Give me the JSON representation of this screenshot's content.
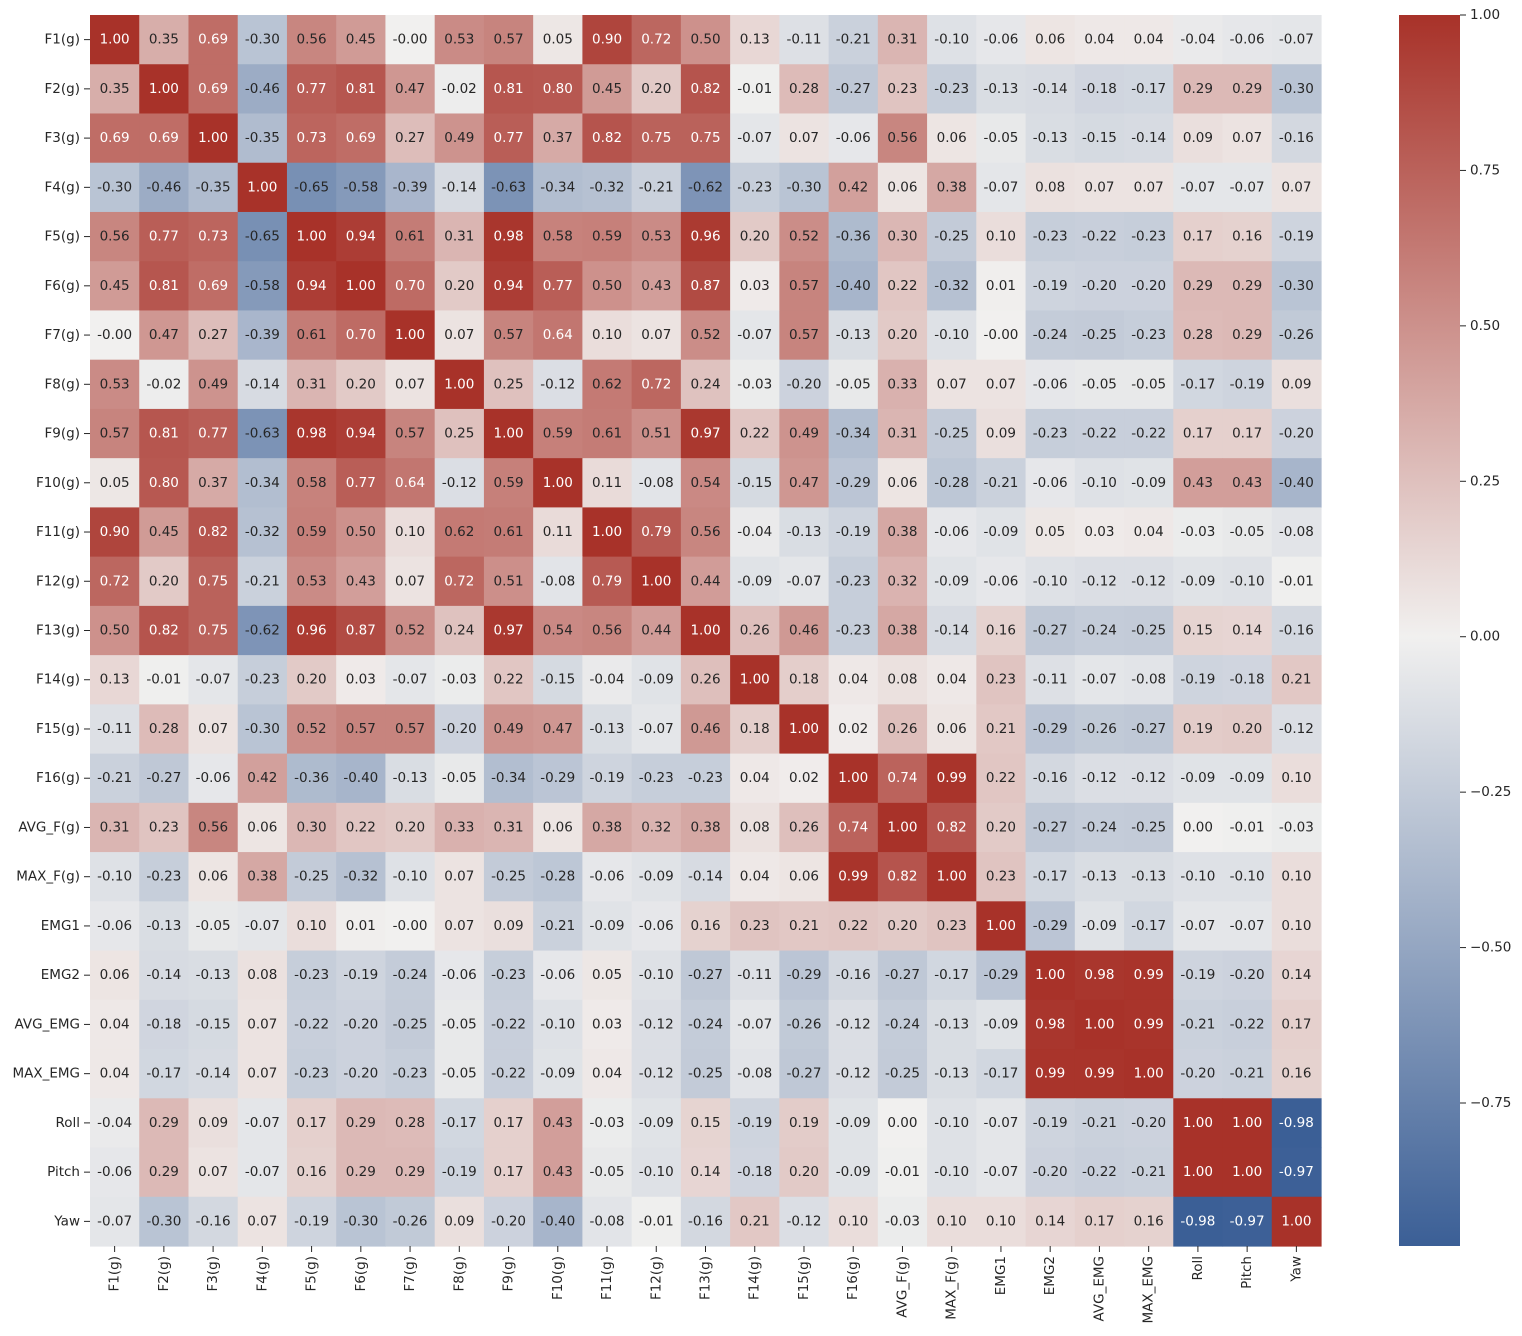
{
  "chart_data": {
    "type": "heatmap",
    "title": "",
    "xlabel": "",
    "ylabel": "",
    "labels": [
      "F1(g)",
      "F2(g)",
      "F3(g)",
      "F4(g)",
      "F5(g)",
      "F6(g)",
      "F7(g)",
      "F8(g)",
      "F9(g)",
      "F10(g)",
      "F11(g)",
      "F12(g)",
      "F13(g)",
      "F14(g)",
      "F15(g)",
      "F16(g)",
      "AVG_F(g)",
      "MAX_F(g)",
      "EMG1",
      "EMG2",
      "AVG_EMG",
      "MAX_EMG",
      "Roll",
      "Pitch",
      "Yaw"
    ],
    "matrix": [
      [
        "1.00",
        "0.35",
        "0.69",
        "-0.30",
        "0.56",
        "0.45",
        "-0.00",
        "0.53",
        "0.57",
        "0.05",
        "0.90",
        "0.72",
        "0.50",
        "0.13",
        "-0.11",
        "-0.21",
        "0.31",
        "-0.10",
        "-0.06",
        "0.06",
        "0.04",
        "0.04",
        "-0.04",
        "-0.06",
        "-0.07"
      ],
      [
        "0.35",
        "1.00",
        "0.69",
        "-0.46",
        "0.77",
        "0.81",
        "0.47",
        "-0.02",
        "0.81",
        "0.80",
        "0.45",
        "0.20",
        "0.82",
        "-0.01",
        "0.28",
        "-0.27",
        "0.23",
        "-0.23",
        "-0.13",
        "-0.14",
        "-0.18",
        "-0.17",
        "0.29",
        "0.29",
        "-0.30"
      ],
      [
        "0.69",
        "0.69",
        "1.00",
        "-0.35",
        "0.73",
        "0.69",
        "0.27",
        "0.49",
        "0.77",
        "0.37",
        "0.82",
        "0.75",
        "0.75",
        "-0.07",
        "0.07",
        "-0.06",
        "0.56",
        "0.06",
        "-0.05",
        "-0.13",
        "-0.15",
        "-0.14",
        "0.09",
        "0.07",
        "-0.16"
      ],
      [
        "-0.30",
        "-0.46",
        "-0.35",
        "1.00",
        "-0.65",
        "-0.58",
        "-0.39",
        "-0.14",
        "-0.63",
        "-0.34",
        "-0.32",
        "-0.21",
        "-0.62",
        "-0.23",
        "-0.30",
        "0.42",
        "0.06",
        "0.38",
        "-0.07",
        "0.08",
        "0.07",
        "0.07",
        "-0.07",
        "-0.07",
        "0.07"
      ],
      [
        "0.56",
        "0.77",
        "0.73",
        "-0.65",
        "1.00",
        "0.94",
        "0.61",
        "0.31",
        "0.98",
        "0.58",
        "0.59",
        "0.53",
        "0.96",
        "0.20",
        "0.52",
        "-0.36",
        "0.30",
        "-0.25",
        "0.10",
        "-0.23",
        "-0.22",
        "-0.23",
        "0.17",
        "0.16",
        "-0.19"
      ],
      [
        "0.45",
        "0.81",
        "0.69",
        "-0.58",
        "0.94",
        "1.00",
        "0.70",
        "0.20",
        "0.94",
        "0.77",
        "0.50",
        "0.43",
        "0.87",
        "0.03",
        "0.57",
        "-0.40",
        "0.22",
        "-0.32",
        "0.01",
        "-0.19",
        "-0.20",
        "-0.20",
        "0.29",
        "0.29",
        "-0.30"
      ],
      [
        "-0.00",
        "0.47",
        "0.27",
        "-0.39",
        "0.61",
        "0.70",
        "1.00",
        "0.07",
        "0.57",
        "0.64",
        "0.10",
        "0.07",
        "0.52",
        "-0.07",
        "0.57",
        "-0.13",
        "0.20",
        "-0.10",
        "-0.00",
        "-0.24",
        "-0.25",
        "-0.23",
        "0.28",
        "0.29",
        "-0.26"
      ],
      [
        "0.53",
        "-0.02",
        "0.49",
        "-0.14",
        "0.31",
        "0.20",
        "0.07",
        "1.00",
        "0.25",
        "-0.12",
        "0.62",
        "0.72",
        "0.24",
        "-0.03",
        "-0.20",
        "-0.05",
        "0.33",
        "0.07",
        "0.07",
        "-0.06",
        "-0.05",
        "-0.05",
        "-0.17",
        "-0.19",
        "0.09"
      ],
      [
        "0.57",
        "0.81",
        "0.77",
        "-0.63",
        "0.98",
        "0.94",
        "0.57",
        "0.25",
        "1.00",
        "0.59",
        "0.61",
        "0.51",
        "0.97",
        "0.22",
        "0.49",
        "-0.34",
        "0.31",
        "-0.25",
        "0.09",
        "-0.23",
        "-0.22",
        "-0.22",
        "0.17",
        "0.17",
        "-0.20"
      ],
      [
        "0.05",
        "0.80",
        "0.37",
        "-0.34",
        "0.58",
        "0.77",
        "0.64",
        "-0.12",
        "0.59",
        "1.00",
        "0.11",
        "-0.08",
        "0.54",
        "-0.15",
        "0.47",
        "-0.29",
        "0.06",
        "-0.28",
        "-0.21",
        "-0.06",
        "-0.10",
        "-0.09",
        "0.43",
        "0.43",
        "-0.40"
      ],
      [
        "0.90",
        "0.45",
        "0.82",
        "-0.32",
        "0.59",
        "0.50",
        "0.10",
        "0.62",
        "0.61",
        "0.11",
        "1.00",
        "0.79",
        "0.56",
        "-0.04",
        "-0.13",
        "-0.19",
        "0.38",
        "-0.06",
        "-0.09",
        "0.05",
        "0.03",
        "0.04",
        "-0.03",
        "-0.05",
        "-0.08"
      ],
      [
        "0.72",
        "0.20",
        "0.75",
        "-0.21",
        "0.53",
        "0.43",
        "0.07",
        "0.72",
        "0.51",
        "-0.08",
        "0.79",
        "1.00",
        "0.44",
        "-0.09",
        "-0.07",
        "-0.23",
        "0.32",
        "-0.09",
        "-0.06",
        "-0.10",
        "-0.12",
        "-0.12",
        "-0.09",
        "-0.10",
        "-0.01"
      ],
      [
        "0.50",
        "0.82",
        "0.75",
        "-0.62",
        "0.96",
        "0.87",
        "0.52",
        "0.24",
        "0.97",
        "0.54",
        "0.56",
        "0.44",
        "1.00",
        "0.26",
        "0.46",
        "-0.23",
        "0.38",
        "-0.14",
        "0.16",
        "-0.27",
        "-0.24",
        "-0.25",
        "0.15",
        "0.14",
        "-0.16"
      ],
      [
        "0.13",
        "-0.01",
        "-0.07",
        "-0.23",
        "0.20",
        "0.03",
        "-0.07",
        "-0.03",
        "0.22",
        "-0.15",
        "-0.04",
        "-0.09",
        "0.26",
        "1.00",
        "0.18",
        "0.04",
        "0.08",
        "0.04",
        "0.23",
        "-0.11",
        "-0.07",
        "-0.08",
        "-0.19",
        "-0.18",
        "0.21"
      ],
      [
        "-0.11",
        "0.28",
        "0.07",
        "-0.30",
        "0.52",
        "0.57",
        "0.57",
        "-0.20",
        "0.49",
        "0.47",
        "-0.13",
        "-0.07",
        "0.46",
        "0.18",
        "1.00",
        "0.02",
        "0.26",
        "0.06",
        "0.21",
        "-0.29",
        "-0.26",
        "-0.27",
        "0.19",
        "0.20",
        "-0.12"
      ],
      [
        "-0.21",
        "-0.27",
        "-0.06",
        "0.42",
        "-0.36",
        "-0.40",
        "-0.13",
        "-0.05",
        "-0.34",
        "-0.29",
        "-0.19",
        "-0.23",
        "-0.23",
        "0.04",
        "0.02",
        "1.00",
        "0.74",
        "0.99",
        "0.22",
        "-0.16",
        "-0.12",
        "-0.12",
        "-0.09",
        "-0.09",
        "0.10"
      ],
      [
        "0.31",
        "0.23",
        "0.56",
        "0.06",
        "0.30",
        "0.22",
        "0.20",
        "0.33",
        "0.31",
        "0.06",
        "0.38",
        "0.32",
        "0.38",
        "0.08",
        "0.26",
        "0.74",
        "1.00",
        "0.82",
        "0.20",
        "-0.27",
        "-0.24",
        "-0.25",
        "0.00",
        "-0.01",
        "-0.03"
      ],
      [
        "-0.10",
        "-0.23",
        "0.06",
        "0.38",
        "-0.25",
        "-0.32",
        "-0.10",
        "0.07",
        "-0.25",
        "-0.28",
        "-0.06",
        "-0.09",
        "-0.14",
        "0.04",
        "0.06",
        "0.99",
        "0.82",
        "1.00",
        "0.23",
        "-0.17",
        "-0.13",
        "-0.13",
        "-0.10",
        "-0.10",
        "0.10"
      ],
      [
        "-0.06",
        "-0.13",
        "-0.05",
        "-0.07",
        "0.10",
        "0.01",
        "-0.00",
        "0.07",
        "0.09",
        "-0.21",
        "-0.09",
        "-0.06",
        "0.16",
        "0.23",
        "0.21",
        "0.22",
        "0.20",
        "0.23",
        "1.00",
        "-0.29",
        "-0.09",
        "-0.17",
        "-0.07",
        "-0.07",
        "0.10"
      ],
      [
        "0.06",
        "-0.14",
        "-0.13",
        "0.08",
        "-0.23",
        "-0.19",
        "-0.24",
        "-0.06",
        "-0.23",
        "-0.06",
        "0.05",
        "-0.10",
        "-0.27",
        "-0.11",
        "-0.29",
        "-0.16",
        "-0.27",
        "-0.17",
        "-0.29",
        "1.00",
        "0.98",
        "0.99",
        "-0.19",
        "-0.20",
        "0.14"
      ],
      [
        "0.04",
        "-0.18",
        "-0.15",
        "0.07",
        "-0.22",
        "-0.20",
        "-0.25",
        "-0.05",
        "-0.22",
        "-0.10",
        "0.03",
        "-0.12",
        "-0.24",
        "-0.07",
        "-0.26",
        "-0.12",
        "-0.24",
        "-0.13",
        "-0.09",
        "0.98",
        "1.00",
        "0.99",
        "-0.21",
        "-0.22",
        "0.17"
      ],
      [
        "0.04",
        "-0.17",
        "-0.14",
        "0.07",
        "-0.23",
        "-0.20",
        "-0.23",
        "-0.05",
        "-0.22",
        "-0.09",
        "0.04",
        "-0.12",
        "-0.25",
        "-0.08",
        "-0.27",
        "-0.12",
        "-0.25",
        "-0.13",
        "-0.17",
        "0.99",
        "0.99",
        "1.00",
        "-0.20",
        "-0.21",
        "0.16"
      ],
      [
        "-0.04",
        "0.29",
        "0.09",
        "-0.07",
        "0.17",
        "0.29",
        "0.28",
        "-0.17",
        "0.17",
        "0.43",
        "-0.03",
        "-0.09",
        "0.15",
        "-0.19",
        "0.19",
        "-0.09",
        "0.00",
        "-0.10",
        "-0.07",
        "-0.19",
        "-0.21",
        "-0.20",
        "1.00",
        "1.00",
        "-0.98"
      ],
      [
        "-0.06",
        "0.29",
        "0.07",
        "-0.07",
        "0.16",
        "0.29",
        "0.29",
        "-0.19",
        "0.17",
        "0.43",
        "-0.05",
        "-0.10",
        "0.14",
        "-0.18",
        "0.20",
        "-0.09",
        "-0.01",
        "-0.10",
        "-0.07",
        "-0.20",
        "-0.22",
        "-0.21",
        "1.00",
        "1.00",
        "-0.97"
      ],
      [
        "-0.07",
        "-0.30",
        "-0.16",
        "0.07",
        "-0.19",
        "-0.30",
        "-0.26",
        "0.09",
        "-0.20",
        "-0.40",
        "-0.08",
        "-0.01",
        "-0.16",
        "0.21",
        "-0.12",
        "0.10",
        "-0.03",
        "0.10",
        "0.10",
        "0.14",
        "0.17",
        "0.16",
        "-0.98",
        "-0.97",
        "1.00"
      ]
    ],
    "vmin": -0.98,
    "vmax": 1.0,
    "colorbar_ticks": [
      "-0.75",
      "-0.50",
      "-0.25",
      "0.00",
      "0.25",
      "0.50",
      "0.75",
      "1.00"
    ],
    "colormap": {
      "low": "#3b5f96",
      "mid": "#f1f0ef",
      "high": "#a83229"
    },
    "legend_position": "right"
  }
}
